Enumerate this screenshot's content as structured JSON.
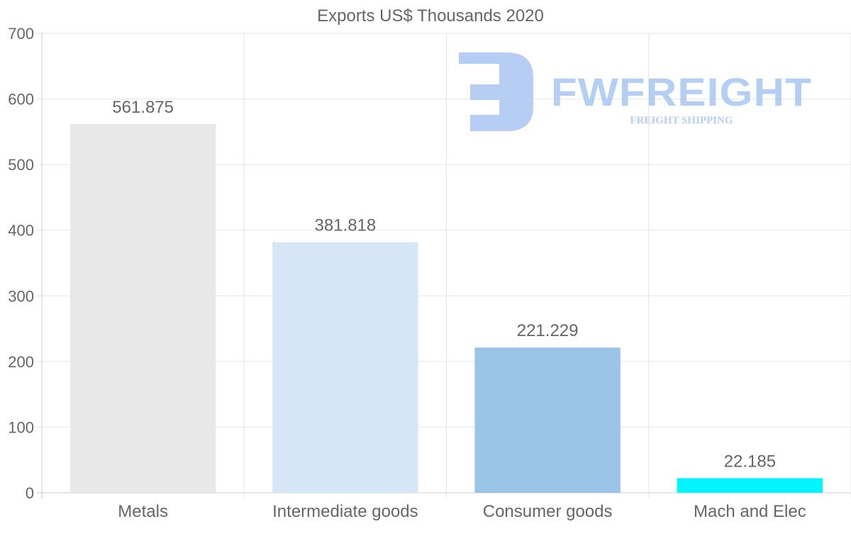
{
  "chart_data": {
    "type": "bar",
    "title": "Exports US$ Thousands 2020",
    "categories": [
      "Metals",
      "Intermediate goods",
      "Consumer goods",
      "Mach and Elec"
    ],
    "values": [
      561.875,
      381.818,
      221.229,
      22.185
    ],
    "value_labels": [
      "561.875",
      "381.818",
      "221.229",
      "22.185"
    ],
    "colors": [
      "#e8e8e8",
      "#d6e6f7",
      "#9ac4e8",
      "#00f5ff"
    ],
    "xlabel": "",
    "ylabel": "",
    "ylim": [
      0,
      700
    ],
    "yticks": [
      0,
      100,
      200,
      300,
      400,
      500,
      600,
      700
    ],
    "grid": true,
    "legend": "none"
  },
  "watermark": {
    "brand": "FWFREIGHT",
    "tagline": "FREIGHT SHIPPING",
    "color": "#a9c6f2"
  }
}
